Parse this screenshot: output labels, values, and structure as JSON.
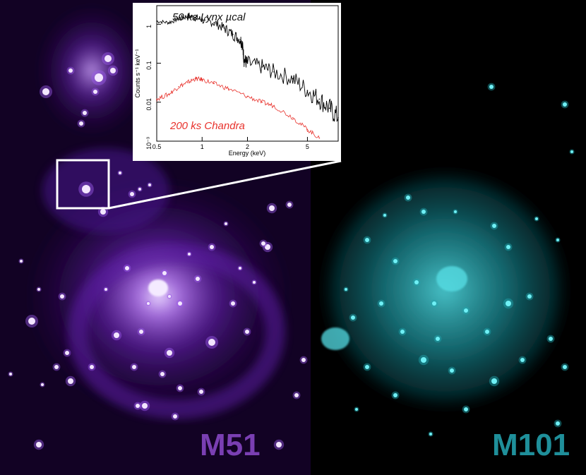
{
  "galaxies": {
    "left": {
      "name": "M51",
      "color": "#7a3fb3"
    },
    "right": {
      "name": "M101",
      "color": "#1f8f9a"
    }
  },
  "inset_chart": {
    "chart_data": {
      "type": "line",
      "xlabel": "Energy (keV)",
      "ylabel": "Counts s⁻¹ keV⁻¹",
      "xscale": "log",
      "yscale": "log",
      "xlim": [
        0.5,
        8
      ],
      "ylim": [
        0.001,
        3
      ],
      "x_ticks": [
        "0.5",
        "1",
        "2",
        "5"
      ],
      "y_ticks": [
        "10⁻³",
        "0.01",
        "0.1",
        "1"
      ],
      "series": [
        {
          "name": "50 ks Lynx µcal",
          "color": "#000000",
          "x": [
            0.5,
            0.6,
            0.7,
            0.8,
            0.9,
            1.0,
            1.2,
            1.4,
            1.6,
            1.8,
            1.85,
            1.9,
            2.0,
            2.5,
            3.0,
            4.0,
            5.0,
            6.0,
            7.0,
            8.0
          ],
          "y": [
            1.2,
            1.1,
            1.4,
            1.6,
            1.5,
            1.3,
            1.1,
            0.8,
            0.55,
            0.4,
            0.3,
            0.12,
            0.1,
            0.08,
            0.06,
            0.04,
            0.02,
            0.012,
            0.007,
            0.004
          ]
        },
        {
          "name": "200 ks Chandra",
          "color": "#e8322c",
          "x": [
            0.5,
            0.6,
            0.7,
            0.8,
            0.9,
            1.0,
            1.2,
            1.5,
            2.0,
            2.5,
            3.0,
            4.0,
            5.0,
            6.0
          ],
          "y": [
            0.012,
            0.016,
            0.025,
            0.032,
            0.04,
            0.038,
            0.03,
            0.022,
            0.014,
            0.01,
            0.008,
            0.004,
            0.002,
            0.0012
          ]
        }
      ]
    }
  }
}
